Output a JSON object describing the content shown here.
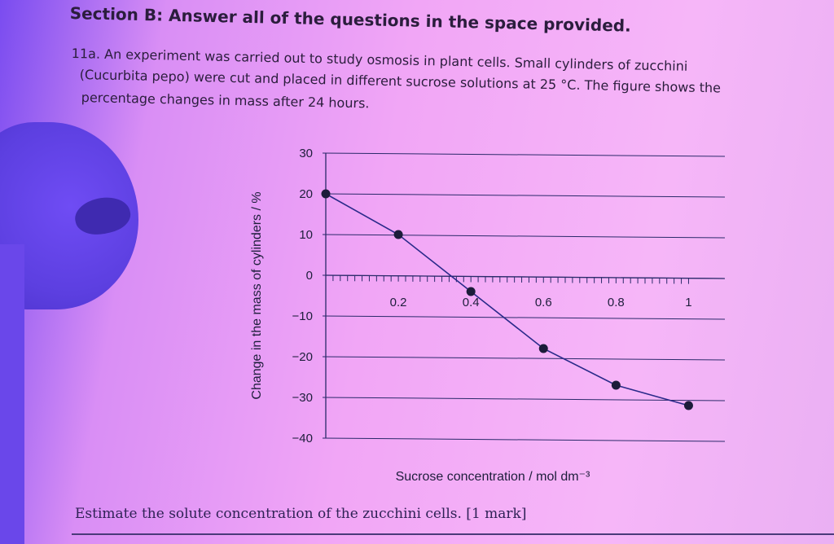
{
  "section_heading": "Section B: Answer all of the questions in the space provided.",
  "question": {
    "lines": [
      "11a. An experiment was carried out to study osmosis in plant cells. Small cylinders of zucchini",
      "(Cucurbita pepo) were cut and placed in different sucrose solutions at 25 °C. The figure shows the",
      "percentage changes in mass after 24 hours."
    ],
    "prompt": "Estimate the solute concentration of the zucchini cells. [1 mark]"
  },
  "chart_data": {
    "type": "line",
    "title": "",
    "xlabel": "Sucrose concentration / mol dm⁻³",
    "ylabel": "Change in the mass of cylinders / %",
    "x": [
      0,
      0.2,
      0.4,
      0.6,
      0.8,
      1.0
    ],
    "y": [
      20,
      10,
      -4,
      -18,
      -27,
      -32
    ],
    "xlim": [
      0,
      1.1
    ],
    "ylim": [
      -40,
      30
    ],
    "x_ticks": [
      "0.2",
      "0.4",
      "0.6",
      "0.8",
      "1"
    ],
    "y_ticks": [
      "30",
      "20",
      "10",
      "0",
      "−10",
      "−20",
      "−30",
      "−40"
    ],
    "grid": "horizontal",
    "colors": {
      "line": "#2a2a8a",
      "marker": "#1c1c3a",
      "axis": "#2a2a6a"
    }
  }
}
